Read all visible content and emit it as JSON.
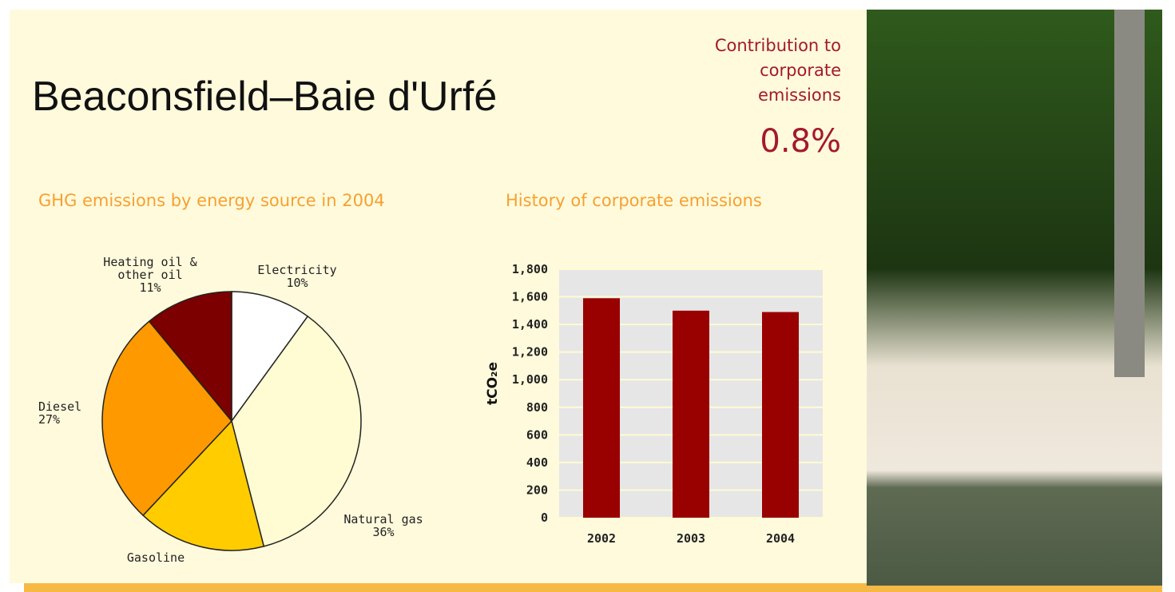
{
  "header": {
    "title": "Beaconsfield–Baie d'Urfé",
    "contribution_label": "Contribution to corporate emissions",
    "contribution_value": "0.8%"
  },
  "chart_data": [
    {
      "type": "pie",
      "title": "GHG emissions by energy source in 2004",
      "categories": [
        "Electricity",
        "Natural gas",
        "Gasoline",
        "Diesel",
        "Heating oil & other oil"
      ],
      "values": [
        10,
        36,
        16,
        27,
        11
      ],
      "value_labels": [
        "10%",
        "36%",
        null,
        "27%",
        "11%"
      ],
      "colors": [
        "#ffffff",
        "#fffbd2",
        "#ffcc00",
        "#ff9900",
        "#7d0000"
      ]
    },
    {
      "type": "bar",
      "title": "History of corporate emissions",
      "y_label": "tCO₂e",
      "categories": [
        "2002",
        "2003",
        "2004"
      ],
      "values": [
        1590,
        1500,
        1490
      ],
      "color": "#990000",
      "ylim": [
        0,
        1800
      ],
      "yticks": [
        0,
        200,
        400,
        600,
        800,
        {
          "value": 1000,
          "label": "1,000"
        },
        {
          "value": 1200,
          "label": "1,200"
        },
        {
          "value": 1400,
          "label": "1,400"
        },
        {
          "value": 1600,
          "label": "1,600"
        },
        {
          "value": 1800,
          "label": "1,800"
        }
      ],
      "grid": true
    }
  ]
}
